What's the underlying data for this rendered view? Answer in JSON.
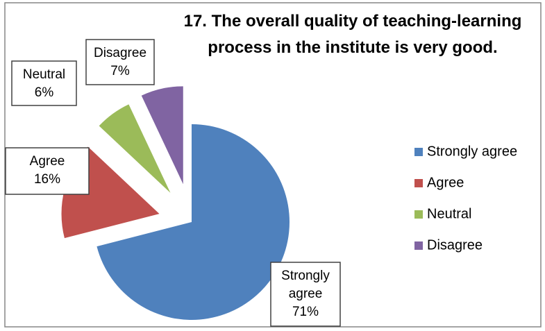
{
  "chart_data": {
    "type": "pie",
    "title": "17. The overall quality of teaching-learning process in the institute is very good.",
    "categories": [
      "Strongly agree",
      "Agree",
      "Neutral",
      "Disagree"
    ],
    "values": [
      71,
      16,
      6,
      7
    ],
    "value_labels": [
      "71%",
      "16%",
      "6%",
      "7%"
    ],
    "colors": [
      "#4f81bd",
      "#c0504d",
      "#9bbb59",
      "#8064a2"
    ],
    "legend": "right"
  }
}
